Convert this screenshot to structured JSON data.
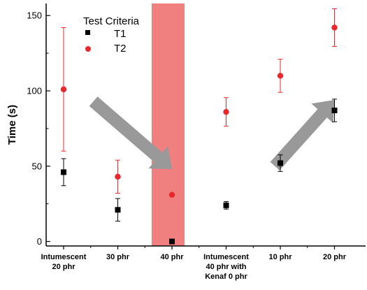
{
  "chart_data": {
    "type": "scatter",
    "ylabel": "Time (s)",
    "xlabel": "",
    "ylim": [
      -3,
      158
    ],
    "yticks": [
      0,
      50,
      100,
      150
    ],
    "categories": [
      [
        "Intumescent",
        "20 phr"
      ],
      [
        "30 phr"
      ],
      [
        "40 phr"
      ],
      [
        "Intumescent",
        "40 phr with",
        "Kenaf 0 phr"
      ],
      [
        "10 phr"
      ],
      [
        "20 phr"
      ]
    ],
    "legend": {
      "title": "Test Criteria",
      "position": "top-left"
    },
    "highlight_category_index": 2,
    "highlight_color": "#f08080",
    "arrows": [
      {
        "from": [
          0.55,
          93
        ],
        "to": [
          2.0,
          48
        ],
        "color": "#999999"
      },
      {
        "from": [
          3.9,
          50
        ],
        "to": [
          5.0,
          94
        ],
        "color": "#999999"
      }
    ],
    "series": [
      {
        "name": "T1",
        "marker": "square",
        "color": "#000000",
        "values": [
          46,
          21,
          0,
          24,
          52,
          87
        ],
        "errors": [
          9,
          7.5,
          0,
          2.5,
          5.5,
          7.5
        ]
      },
      {
        "name": "T2",
        "marker": "circle",
        "color": "#e8282c",
        "values": [
          101,
          43,
          31,
          86,
          110,
          142
        ],
        "errors": [
          41,
          11,
          0,
          9.5,
          11,
          12.5
        ]
      }
    ]
  }
}
